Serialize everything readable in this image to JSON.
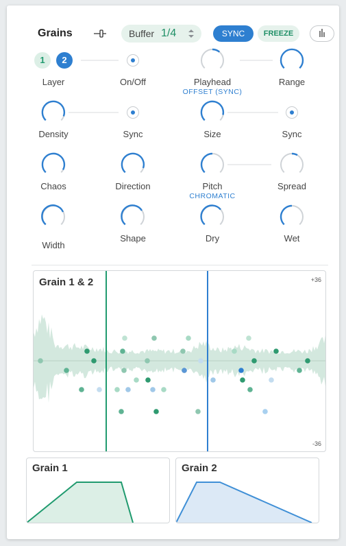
{
  "header": {
    "title": "Grains",
    "buffer_label": "Buffer",
    "buffer_value": "1/4",
    "sync_label": "SYNC",
    "freeze_label": "FREEZE",
    "sync_active": true
  },
  "controls": {
    "layer": {
      "label": "Layer",
      "options": [
        "1",
        "2"
      ],
      "selected": "2"
    },
    "on_off": {
      "label": "On/Off"
    },
    "playhead": {
      "label": "Playhead",
      "sublabel": "OFFSET (SYNC)"
    },
    "range": {
      "label": "Range"
    },
    "density": {
      "label": "Density"
    },
    "sync_1": {
      "label": "Sync"
    },
    "size": {
      "label": "Size"
    },
    "sync_2": {
      "label": "Sync"
    },
    "chaos": {
      "label": "Chaos"
    },
    "direction": {
      "label": "Direction"
    },
    "pitch": {
      "label": "Pitch",
      "sublabel": "CHROMATIC"
    },
    "spread": {
      "label": "Spread"
    },
    "width": {
      "label": "Width"
    },
    "shape": {
      "label": "Shape"
    },
    "dry": {
      "label": "Dry"
    },
    "wet": {
      "label": "Wet"
    }
  },
  "waveform": {
    "title": "Grain 1 & 2",
    "max_label": "+36",
    "min_label": "-36"
  },
  "envelopes": {
    "grain1_title": "Grain 1",
    "grain2_title": "Grain 2"
  },
  "colors": {
    "green": "#1f9a6e",
    "blue": "#2e7fd0",
    "green_fill": "#dcefe6",
    "blue_fill": "#dce9f6"
  }
}
